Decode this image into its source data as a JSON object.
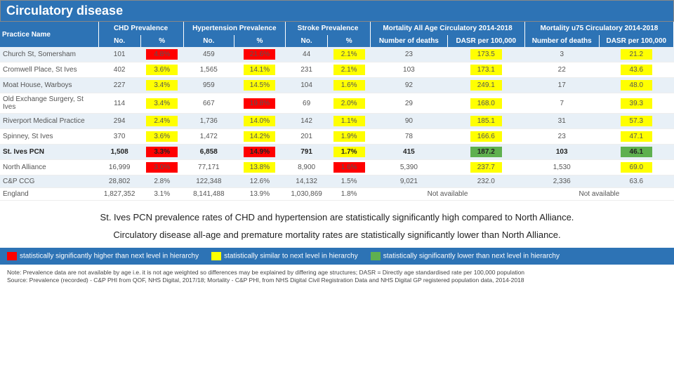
{
  "title": "Circulatory disease",
  "colors": {
    "headerBg": "#2d73b5",
    "altRow": "#e8f0f7",
    "sigHigh": "#ff0000",
    "sigSimilar": "#ffff00",
    "sigLow": "#5fb04f",
    "text": "#555"
  },
  "headers": {
    "practice": "Practice Name",
    "groups": [
      {
        "label": "CHD Prevalence",
        "subs": [
          "No.",
          "%"
        ]
      },
      {
        "label": "Hypertension Prevalence",
        "subs": [
          "No.",
          "%"
        ]
      },
      {
        "label": "Stroke Prevalence",
        "subs": [
          "No.",
          "%"
        ]
      },
      {
        "label": "Mortality All Age Circulatory 2014-2018",
        "subs": [
          "Number of deaths",
          "DASR per 100,000"
        ]
      },
      {
        "label": "Mortality u75 Circulatory 2014-2018",
        "subs": [
          "Number of deaths",
          "DASR per 100,000"
        ]
      }
    ]
  },
  "rows": [
    {
      "name": "Church St, Somersham",
      "cells": [
        {
          "v": "101"
        },
        {
          "v": "4.8%",
          "c": "#ff0000"
        },
        {
          "v": "459"
        },
        {
          "v": "21.6%",
          "c": "#ff0000"
        },
        {
          "v": "44"
        },
        {
          "v": "2.1%",
          "c": "#ffff00"
        },
        {
          "v": "23"
        },
        {
          "v": "173.5",
          "c": "#ffff00"
        },
        {
          "v": "3"
        },
        {
          "v": "21.2",
          "c": "#ffff00"
        }
      ]
    },
    {
      "name": "Cromwell Place, St Ives",
      "cells": [
        {
          "v": "402"
        },
        {
          "v": "3.6%",
          "c": "#ffff00"
        },
        {
          "v": "1,565"
        },
        {
          "v": "14.1%",
          "c": "#ffff00"
        },
        {
          "v": "231"
        },
        {
          "v": "2.1%",
          "c": "#ffff00"
        },
        {
          "v": "103"
        },
        {
          "v": "173.1",
          "c": "#ffff00"
        },
        {
          "v": "22"
        },
        {
          "v": "43.6",
          "c": "#ffff00"
        }
      ]
    },
    {
      "name": "Moat House, Warboys",
      "cells": [
        {
          "v": "227"
        },
        {
          "v": "3.4%",
          "c": "#ffff00"
        },
        {
          "v": "959"
        },
        {
          "v": "14.5%",
          "c": "#ffff00"
        },
        {
          "v": "104"
        },
        {
          "v": "1.6%",
          "c": "#ffff00"
        },
        {
          "v": "92"
        },
        {
          "v": "249.1",
          "c": "#ffff00"
        },
        {
          "v": "17"
        },
        {
          "v": "48.0",
          "c": "#ffff00"
        }
      ]
    },
    {
      "name": "Old Exchange Surgery, St Ives",
      "cells": [
        {
          "v": "114"
        },
        {
          "v": "3.4%",
          "c": "#ffff00"
        },
        {
          "v": "667"
        },
        {
          "v": "19.8%",
          "c": "#ff0000"
        },
        {
          "v": "69"
        },
        {
          "v": "2.0%",
          "c": "#ffff00"
        },
        {
          "v": "29"
        },
        {
          "v": "168.0",
          "c": "#ffff00"
        },
        {
          "v": "7"
        },
        {
          "v": "39.3",
          "c": "#ffff00"
        }
      ]
    },
    {
      "name": "Riverport Medical Practice",
      "cells": [
        {
          "v": "294"
        },
        {
          "v": "2.4%",
          "c": "#ffff00"
        },
        {
          "v": "1,736"
        },
        {
          "v": "14.0%",
          "c": "#ffff00"
        },
        {
          "v": "142"
        },
        {
          "v": "1.1%",
          "c": "#ffff00"
        },
        {
          "v": "90"
        },
        {
          "v": "185.1",
          "c": "#ffff00"
        },
        {
          "v": "31"
        },
        {
          "v": "57.3",
          "c": "#ffff00"
        }
      ]
    },
    {
      "name": "Spinney, St Ives",
      "cells": [
        {
          "v": "370"
        },
        {
          "v": "3.6%",
          "c": "#ffff00"
        },
        {
          "v": "1,472"
        },
        {
          "v": "14.2%",
          "c": "#ffff00"
        },
        {
          "v": "201"
        },
        {
          "v": "1.9%",
          "c": "#ffff00"
        },
        {
          "v": "78"
        },
        {
          "v": "166.6",
          "c": "#ffff00"
        },
        {
          "v": "23"
        },
        {
          "v": "47.1",
          "c": "#ffff00"
        }
      ]
    },
    {
      "name": "St. Ives PCN",
      "bold": true,
      "cells": [
        {
          "v": "1,508"
        },
        {
          "v": "3.3%",
          "c": "#ff0000"
        },
        {
          "v": "6,858"
        },
        {
          "v": "14.9%",
          "c": "#ff0000"
        },
        {
          "v": "791"
        },
        {
          "v": "1.7%",
          "c": "#ffff00"
        },
        {
          "v": "415"
        },
        {
          "v": "187.2",
          "c": "#5fb04f"
        },
        {
          "v": "103"
        },
        {
          "v": "46.1",
          "c": "#5fb04f"
        }
      ]
    },
    {
      "name": "North Alliance",
      "cells": [
        {
          "v": "16,999"
        },
        {
          "v": "3.0%",
          "c": "#ff0000"
        },
        {
          "v": "77,171"
        },
        {
          "v": "13.8%",
          "c": "#ffff00"
        },
        {
          "v": "8,900"
        },
        {
          "v": "1.6%",
          "c": "#ff0000"
        },
        {
          "v": "5,390"
        },
        {
          "v": "237.7",
          "c": "#ffff00"
        },
        {
          "v": "1,530"
        },
        {
          "v": "69.0",
          "c": "#ffff00"
        }
      ]
    },
    {
      "name": "C&P CCG",
      "cells": [
        {
          "v": "28,802"
        },
        {
          "v": "2.8%"
        },
        {
          "v": "122,348"
        },
        {
          "v": "12.6%"
        },
        {
          "v": "14,132"
        },
        {
          "v": "1.5%"
        },
        {
          "v": "9,021"
        },
        {
          "v": "232.0"
        },
        {
          "v": "2,336"
        },
        {
          "v": "63.6"
        }
      ]
    },
    {
      "name": "England",
      "cells": [
        {
          "v": "1,827,352"
        },
        {
          "v": "3.1%"
        },
        {
          "v": "8,141,488"
        },
        {
          "v": "13.9%"
        },
        {
          "v": "1,030,869"
        },
        {
          "v": "1.8%"
        },
        {
          "v": "Not available",
          "span": 2
        },
        {
          "v": "Not available",
          "span": 2
        }
      ]
    }
  ],
  "commentary": {
    "line1": "St. Ives PCN prevalence rates of CHD and hypertension are statistically significantly high compared to North Alliance.",
    "line2": "Circulatory disease all-age and premature mortality rates are statistically significantly lower than North Alliance."
  },
  "legend": [
    {
      "c": "#ff0000",
      "t": "statistically significantly higher than next level in hierarchy"
    },
    {
      "c": "#ffff00",
      "t": "statistically similar to next level in hierarchy"
    },
    {
      "c": "#5fb04f",
      "t": "statistically significantly lower than next level in hierarchy"
    }
  ],
  "footnote": {
    "l1": "Note: Prevalence data are not available by age i.e. it is not age weighted so differences may be explained by differing age structures; DASR = Directly age standardised rate per 100,000 population",
    "l2": "Source: Prevalence (recorded) - C&P PHI from QOF, NHS Digital, 2017/18; Mortality - C&P PHI, from NHS Digital Civil Registration Data and NHS Digital GP registered population data, 2014-2018"
  }
}
